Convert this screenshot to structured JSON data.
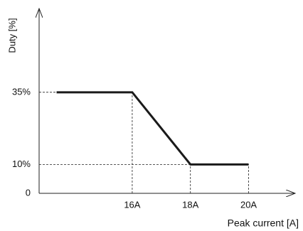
{
  "chart_data": {
    "type": "line",
    "x_label": "Peak current [A]",
    "y_label": "Duty [%]",
    "x": [
      13.4,
      16,
      18,
      20
    ],
    "series": [
      {
        "color": "#1a1a1a",
        "values": [
          35,
          35,
          10,
          10
        ]
      }
    ],
    "xlim": [
      12.8,
      21.6
    ],
    "ylim": [
      0,
      64
    ],
    "xticks": [
      {
        "value": 16,
        "label": "16A"
      },
      {
        "value": 18,
        "label": "18A"
      },
      {
        "value": 20,
        "label": "20A"
      }
    ],
    "yticks": [
      0,
      {
        "value": 10,
        "label": "10%"
      },
      {
        "value": 35,
        "label": "35%"
      }
    ]
  }
}
